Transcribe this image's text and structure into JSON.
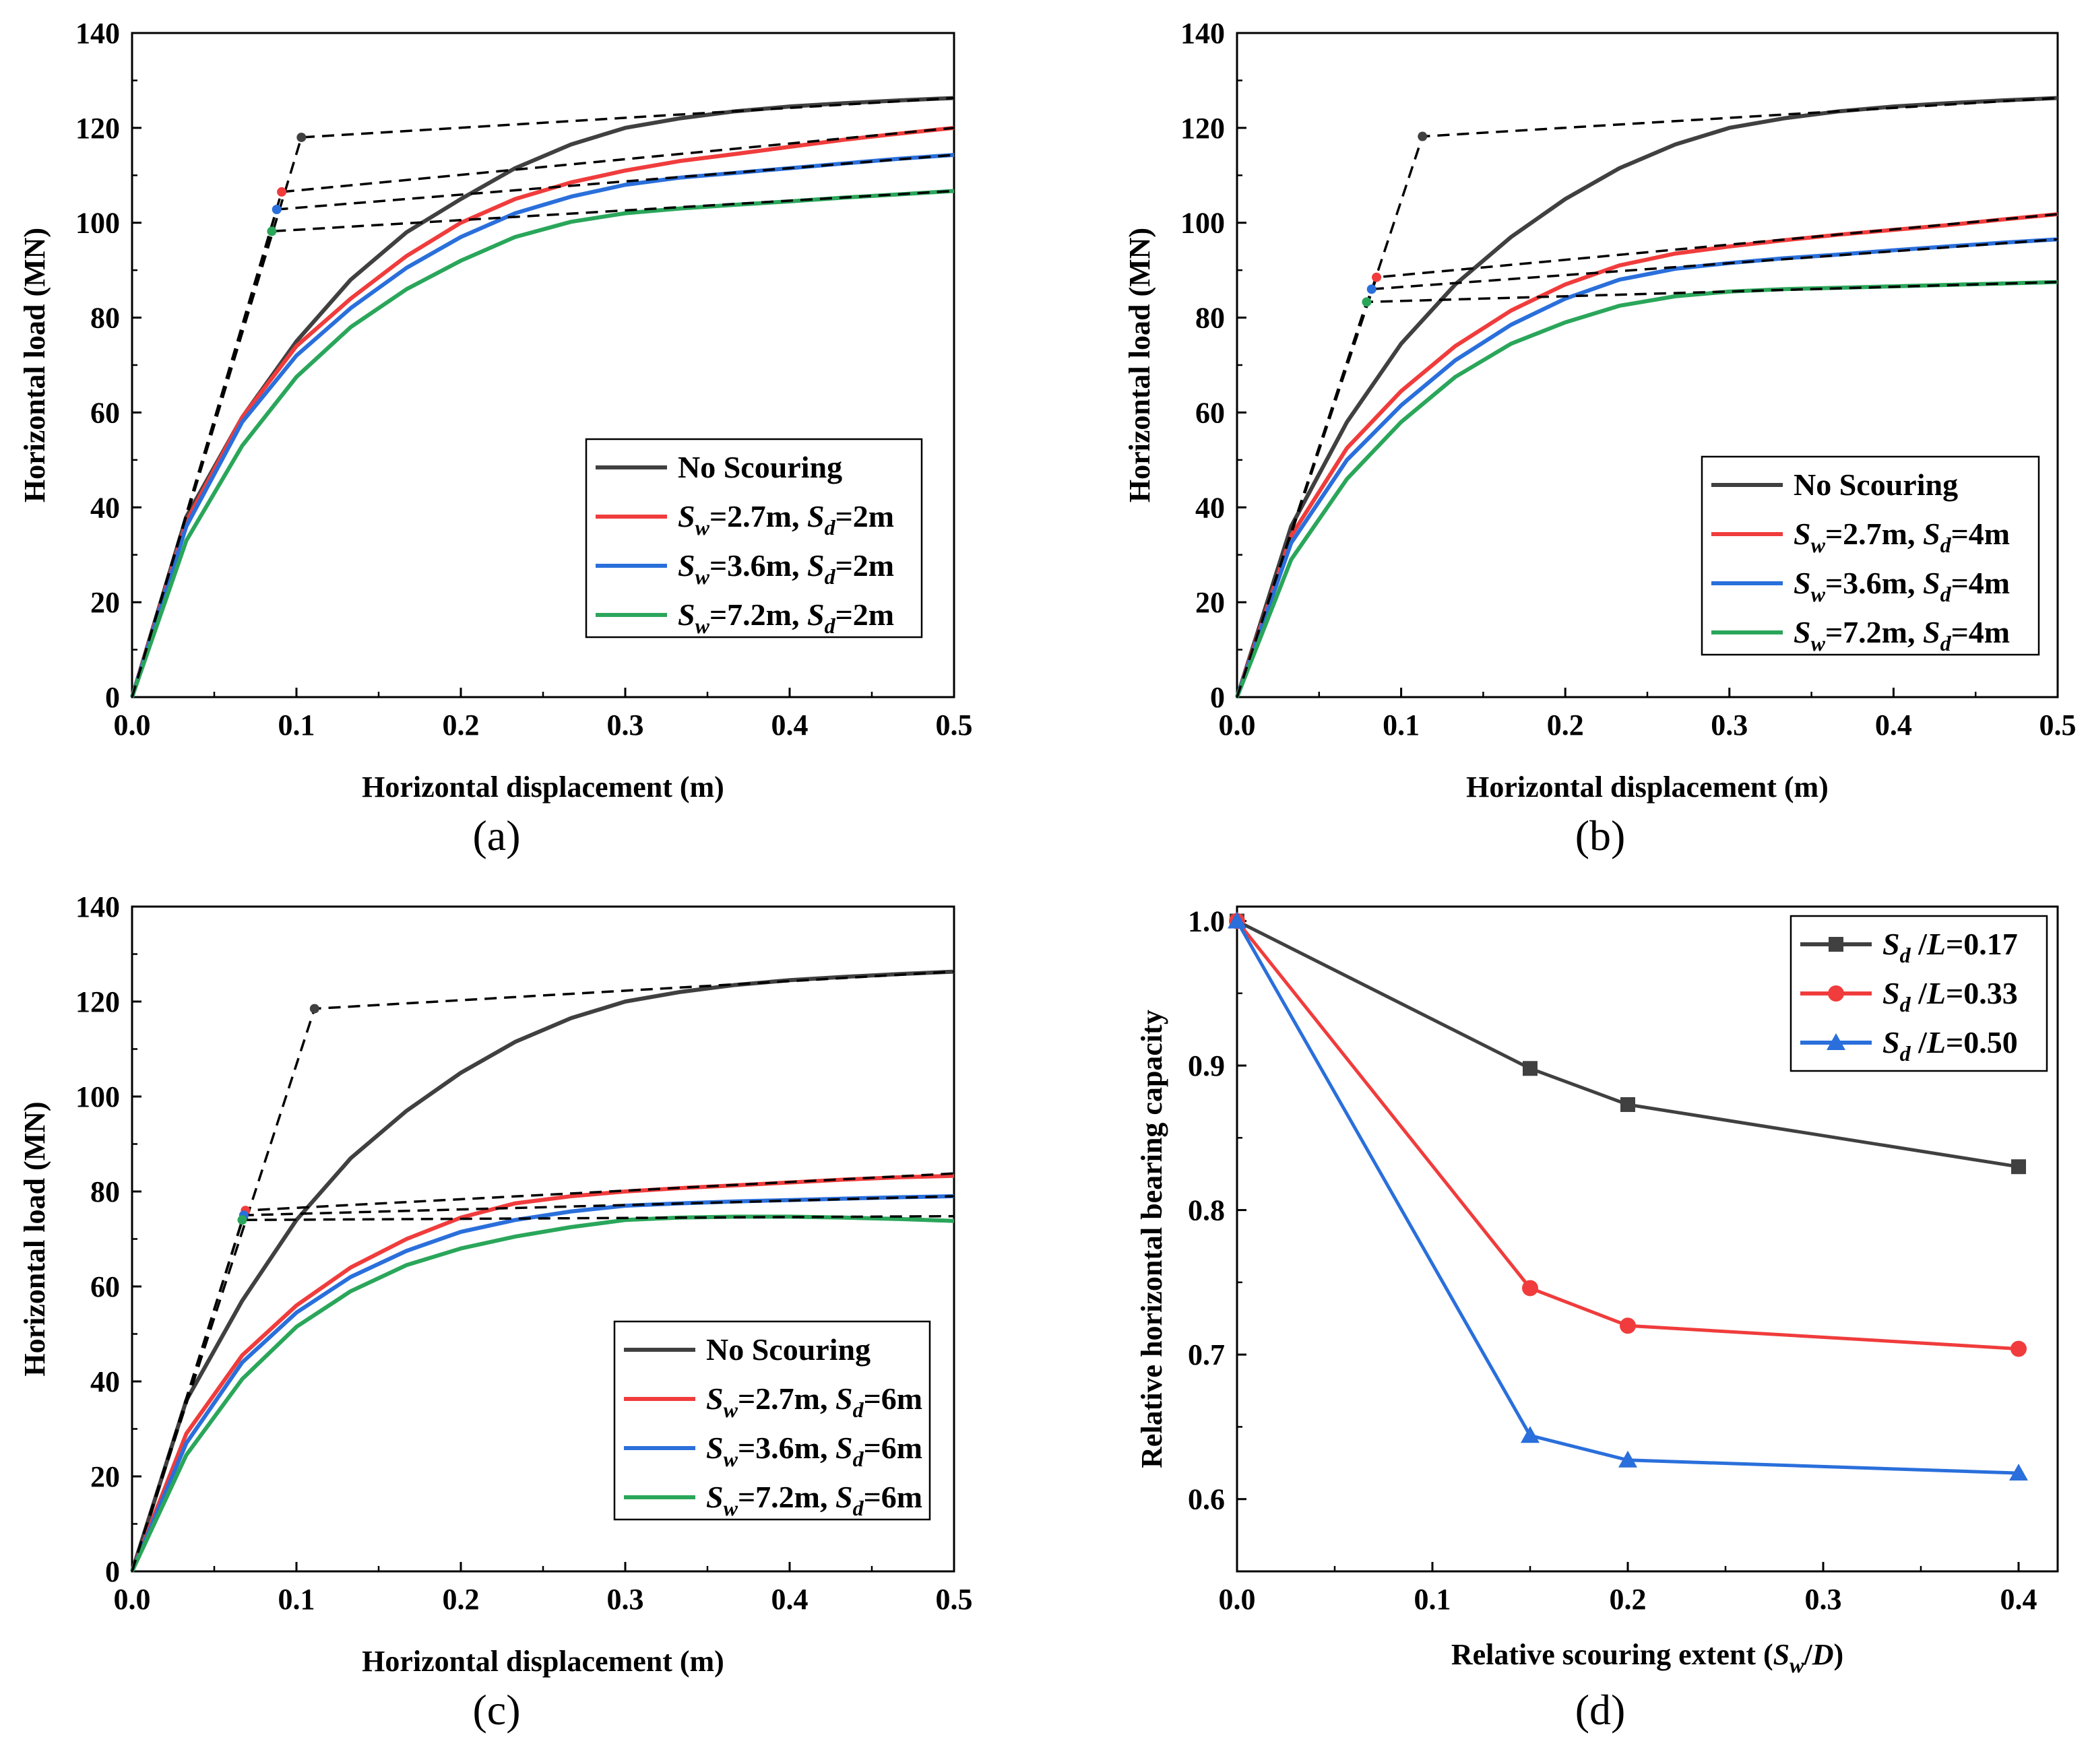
{
  "colors": {
    "no_scouring": "#404040",
    "sw27": "#f03c3c",
    "sw36": "#2a6fdb",
    "sw72": "#2aa65a",
    "dashed": "#000000"
  },
  "chart_data": [
    {
      "panel_label": "(a)",
      "type": "line",
      "xlabel": "Horizontal displacement (m)",
      "ylabel": "Horizontal load (MN)",
      "xlim": [
        0,
        0.5
      ],
      "ylim": [
        0,
        140
      ],
      "xticks": [
        "0.0",
        "0.1",
        "0.2",
        "0.3",
        "0.4",
        "0.5"
      ],
      "yticks": [
        "0",
        "20",
        "40",
        "60",
        "80",
        "100",
        "120",
        "140"
      ],
      "legend_position": "lower-right",
      "series": [
        {
          "name": "No Scouring",
          "legend": [
            "No Scouring"
          ],
          "color": "#404040",
          "x": [
            0,
            0.033,
            0.067,
            0.1,
            0.133,
            0.167,
            0.2,
            0.233,
            0.267,
            0.3,
            0.333,
            0.367,
            0.4,
            0.433,
            0.467,
            0.5
          ],
          "y": [
            0,
            38,
            59,
            75,
            88,
            98,
            105,
            111.5,
            116.5,
            120,
            122,
            123.5,
            124.5,
            125.2,
            125.8,
            126.3
          ],
          "bilinear": {
            "x": [
              0,
              0.103,
              0.5
            ],
            "y": [
              0,
              118,
              126.3
            ]
          },
          "yield_point": [
            0.103,
            118
          ]
        },
        {
          "name": "Sw=2.7m, Sd=2m",
          "legend": [
            "S",
            "w",
            "=2.7m, ",
            "S",
            "d",
            "=2m"
          ],
          "color": "#f03c3c",
          "x": [
            0,
            0.033,
            0.067,
            0.1,
            0.133,
            0.167,
            0.2,
            0.233,
            0.267,
            0.3,
            0.333,
            0.367,
            0.4,
            0.433,
            0.467,
            0.5
          ],
          "y": [
            0,
            37,
            59,
            74,
            84,
            93,
            100,
            105,
            108.5,
            111,
            113,
            114.5,
            116,
            117.5,
            118.8,
            120
          ],
          "bilinear": {
            "x": [
              0,
              0.091,
              0.5
            ],
            "y": [
              0,
              106.5,
              120
            ]
          },
          "yield_point": [
            0.091,
            106.5
          ]
        },
        {
          "name": "Sw=3.6m, Sd=2m",
          "legend": [
            "S",
            "w",
            "=3.6m, ",
            "S",
            "d",
            "=2m"
          ],
          "color": "#2a6fdb",
          "x": [
            0,
            0.033,
            0.067,
            0.1,
            0.133,
            0.167,
            0.2,
            0.233,
            0.267,
            0.3,
            0.333,
            0.367,
            0.4,
            0.433,
            0.467,
            0.5
          ],
          "y": [
            0,
            36,
            58,
            72,
            82,
            90.5,
            97,
            102,
            105.5,
            108,
            109.5,
            110.5,
            111.5,
            112.5,
            113.5,
            114.3
          ],
          "bilinear": {
            "x": [
              0,
              0.088,
              0.5
            ],
            "y": [
              0,
              102.8,
              114.3
            ]
          },
          "yield_point": [
            0.088,
            102.8
          ]
        },
        {
          "name": "Sw=7.2m, Sd=2m",
          "legend": [
            "S",
            "w",
            "=7.2m, ",
            "S",
            "d",
            "=2m"
          ],
          "color": "#2aa65a",
          "x": [
            0,
            0.033,
            0.067,
            0.1,
            0.133,
            0.167,
            0.2,
            0.233,
            0.267,
            0.3,
            0.333,
            0.367,
            0.4,
            0.433,
            0.467,
            0.5
          ],
          "y": [
            0,
            33,
            53,
            67.5,
            78,
            86,
            92,
            97,
            100.2,
            102,
            103,
            103.8,
            104.5,
            105.3,
            106,
            106.7
          ],
          "bilinear": {
            "x": [
              0,
              0.085,
              0.5
            ],
            "y": [
              0,
              98.2,
              106.7
            ]
          },
          "yield_point": [
            0.085,
            98.2
          ]
        }
      ]
    },
    {
      "panel_label": "(b)",
      "type": "line",
      "xlabel": "Horizontal displacement (m)",
      "ylabel": "Horizontal load (MN)",
      "xlim": [
        0,
        0.5
      ],
      "ylim": [
        0,
        140
      ],
      "xticks": [
        "0.0",
        "0.1",
        "0.2",
        "0.3",
        "0.4",
        "0.5"
      ],
      "yticks": [
        "0",
        "20",
        "40",
        "60",
        "80",
        "100",
        "120",
        "140"
      ],
      "legend_position": "lower-right",
      "series": [
        {
          "name": "No Scouring",
          "legend": [
            "No Scouring"
          ],
          "color": "#404040",
          "x": [
            0,
            0.033,
            0.067,
            0.1,
            0.133,
            0.167,
            0.2,
            0.233,
            0.267,
            0.3,
            0.333,
            0.367,
            0.4,
            0.433,
            0.467,
            0.5
          ],
          "y": [
            0,
            36,
            58,
            74.5,
            87,
            97,
            105,
            111.5,
            116.5,
            120,
            122,
            123.5,
            124.5,
            125.2,
            125.8,
            126.3
          ],
          "bilinear": {
            "x": [
              0,
              0.113,
              0.5
            ],
            "y": [
              0,
              118.2,
              126.3
            ]
          },
          "yield_point": [
            0.113,
            118.2
          ]
        },
        {
          "name": "Sw=2.7m, Sd=4m",
          "legend": [
            "S",
            "w",
            "=2.7m, ",
            "S",
            "d",
            "=4m"
          ],
          "color": "#f03c3c",
          "x": [
            0,
            0.033,
            0.067,
            0.1,
            0.133,
            0.167,
            0.2,
            0.233,
            0.267,
            0.3,
            0.333,
            0.367,
            0.4,
            0.433,
            0.467,
            0.5
          ],
          "y": [
            0,
            34,
            52.5,
            64.5,
            74,
            81.5,
            87,
            91,
            93.5,
            95,
            96.3,
            97.5,
            98.5,
            99.5,
            100.7,
            101.8
          ],
          "bilinear": {
            "x": [
              0,
              0.085,
              0.5
            ],
            "y": [
              0,
              88.5,
              101.8
            ]
          },
          "yield_point": [
            0.085,
            88.5
          ]
        },
        {
          "name": "Sw=3.6m, Sd=4m",
          "legend": [
            "S",
            "w",
            "=3.6m, ",
            "S",
            "d",
            "=4m"
          ],
          "color": "#2a6fdb",
          "x": [
            0,
            0.033,
            0.067,
            0.1,
            0.133,
            0.167,
            0.2,
            0.233,
            0.267,
            0.3,
            0.333,
            0.367,
            0.4,
            0.433,
            0.467,
            0.5
          ],
          "y": [
            0,
            32.5,
            50,
            61.5,
            71,
            78.5,
            84,
            88,
            90.3,
            91.5,
            92.5,
            93.3,
            94.2,
            95,
            95.8,
            96.5
          ],
          "bilinear": {
            "x": [
              0,
              0.082,
              0.5
            ],
            "y": [
              0,
              86,
              96.5
            ]
          },
          "yield_point": [
            0.082,
            86
          ]
        },
        {
          "name": "Sw=7.2m, Sd=4m",
          "legend": [
            "S",
            "w",
            "=7.2m, ",
            "S",
            "d",
            "=4m"
          ],
          "color": "#2aa65a",
          "x": [
            0,
            0.033,
            0.067,
            0.1,
            0.133,
            0.167,
            0.2,
            0.233,
            0.267,
            0.3,
            0.333,
            0.367,
            0.4,
            0.433,
            0.467,
            0.5
          ],
          "y": [
            0,
            29,
            46,
            58,
            67.5,
            74.5,
            79,
            82.5,
            84.5,
            85.5,
            86,
            86.3,
            86.6,
            86.9,
            87.2,
            87.5
          ],
          "bilinear": {
            "x": [
              0,
              0.079,
              0.5
            ],
            "y": [
              0,
              83.3,
              87.5
            ]
          },
          "yield_point": [
            0.079,
            83.3
          ]
        }
      ]
    },
    {
      "panel_label": "(c)",
      "type": "line",
      "xlabel": "Horizontal displacement (m)",
      "ylabel": "Horizontal load (MN)",
      "xlim": [
        0,
        0.5
      ],
      "ylim": [
        0,
        140
      ],
      "xticks": [
        "0.0",
        "0.1",
        "0.2",
        "0.3",
        "0.4",
        "0.5"
      ],
      "yticks": [
        "0",
        "20",
        "40",
        "60",
        "80",
        "100",
        "120",
        "140"
      ],
      "legend_position": "lower-right",
      "series": [
        {
          "name": "No Scouring",
          "legend": [
            "No Scouring"
          ],
          "color": "#404040",
          "x": [
            0,
            0.033,
            0.067,
            0.1,
            0.133,
            0.167,
            0.2,
            0.233,
            0.267,
            0.3,
            0.333,
            0.367,
            0.4,
            0.433,
            0.467,
            0.5
          ],
          "y": [
            0,
            36,
            57,
            74,
            87,
            97,
            105,
            111.5,
            116.5,
            120,
            122,
            123.5,
            124.5,
            125.2,
            125.8,
            126.3
          ],
          "bilinear": {
            "x": [
              0,
              0.111,
              0.5
            ],
            "y": [
              0,
              118.5,
              126.3
            ]
          },
          "yield_point": [
            0.111,
            118.5
          ]
        },
        {
          "name": "Sw=2.7m, Sd=6m",
          "legend": [
            "S",
            "w",
            "=2.7m, ",
            "S",
            "d",
            "=6m"
          ],
          "color": "#f03c3c",
          "x": [
            0,
            0.033,
            0.067,
            0.1,
            0.133,
            0.167,
            0.2,
            0.233,
            0.267,
            0.3,
            0.333,
            0.367,
            0.4,
            0.433,
            0.467,
            0.5
          ],
          "y": [
            0,
            29,
            45.5,
            56,
            64,
            70,
            74.5,
            77.5,
            79,
            80,
            80.7,
            81.3,
            81.9,
            82.5,
            83,
            83.3
          ],
          "bilinear": {
            "x": [
              0,
              0.069,
              0.5
            ],
            "y": [
              0,
              76,
              83.8
            ]
          },
          "yield_point": [
            0.069,
            76
          ]
        },
        {
          "name": "Sw=3.6m, Sd=6m",
          "legend": [
            "S",
            "w",
            "=3.6m, ",
            "S",
            "d",
            "=6m"
          ],
          "color": "#2a6fdb",
          "x": [
            0,
            0.033,
            0.067,
            0.1,
            0.133,
            0.167,
            0.2,
            0.233,
            0.267,
            0.3,
            0.333,
            0.367,
            0.4,
            0.433,
            0.467,
            0.5
          ],
          "y": [
            0,
            27,
            44,
            54.5,
            62,
            67.5,
            71.5,
            74,
            75.8,
            77,
            77.5,
            77.9,
            78.2,
            78.5,
            78.8,
            79
          ],
          "bilinear": {
            "x": [
              0,
              0.068,
              0.5
            ],
            "y": [
              0,
              75,
              79
            ]
          },
          "yield_point": [
            0.068,
            75
          ]
        },
        {
          "name": "Sw=7.2m, Sd=6m",
          "legend": [
            "S",
            "w",
            "=7.2m, ",
            "S",
            "d",
            "=6m"
          ],
          "color": "#2aa65a",
          "x": [
            0,
            0.033,
            0.067,
            0.1,
            0.133,
            0.167,
            0.2,
            0.233,
            0.267,
            0.3,
            0.333,
            0.367,
            0.4,
            0.433,
            0.467,
            0.5
          ],
          "y": [
            0,
            24.5,
            40.5,
            51.5,
            59,
            64.5,
            68,
            70.5,
            72.5,
            74,
            74.5,
            74.7,
            74.7,
            74.5,
            74.2,
            73.8
          ],
          "bilinear": {
            "x": [
              0,
              0.067,
              0.5
            ],
            "y": [
              0,
              74,
              74.8
            ]
          },
          "yield_point": [
            0.067,
            74
          ]
        }
      ]
    },
    {
      "panel_label": "(d)",
      "type": "line",
      "xlabel_parts": [
        "Relative scouring extent (",
        "S",
        "w",
        "/",
        "D",
        ")"
      ],
      "ylabel": "Relative horizontal bearing capacity",
      "xlim": [
        0,
        0.42
      ],
      "ylim": [
        0.55,
        1.01
      ],
      "xticks": [
        {
          "v": 0.0,
          "t": "0.0"
        },
        {
          "v": 0.1,
          "t": "0.1"
        },
        {
          "v": 0.2,
          "t": "0.2"
        },
        {
          "v": 0.3,
          "t": "0.3"
        },
        {
          "v": 0.4,
          "t": "0.4"
        }
      ],
      "yticks": [
        {
          "v": 0.6,
          "t": "0.6"
        },
        {
          "v": 0.7,
          "t": "0.7"
        },
        {
          "v": 0.8,
          "t": "0.8"
        },
        {
          "v": 0.9,
          "t": "0.9"
        },
        {
          "v": 1.0,
          "t": "1.0"
        }
      ],
      "legend_position": "top-right",
      "series": [
        {
          "name": "Sd /L=0.17",
          "legend": [
            "S",
            "d",
            " /",
            "L",
            "=0.17"
          ],
          "marker": "square",
          "color": "#404040",
          "x": [
            0,
            0.15,
            0.2,
            0.4
          ],
          "y": [
            1.0,
            0.898,
            0.873,
            0.83
          ]
        },
        {
          "name": "Sd /L=0.33",
          "legend": [
            "S",
            "d",
            " /",
            "L",
            "=0.33"
          ],
          "marker": "circle",
          "color": "#f03c3c",
          "x": [
            0,
            0.15,
            0.2,
            0.4
          ],
          "y": [
            1.0,
            0.746,
            0.72,
            0.704
          ]
        },
        {
          "name": "Sd /L=0.50",
          "legend": [
            "S",
            "d",
            " /",
            "L",
            "=0.50"
          ],
          "marker": "triangle",
          "color": "#2a6fdb",
          "x": [
            0,
            0.15,
            0.2,
            0.4
          ],
          "y": [
            1.0,
            0.644,
            0.627,
            0.618
          ]
        }
      ]
    }
  ]
}
